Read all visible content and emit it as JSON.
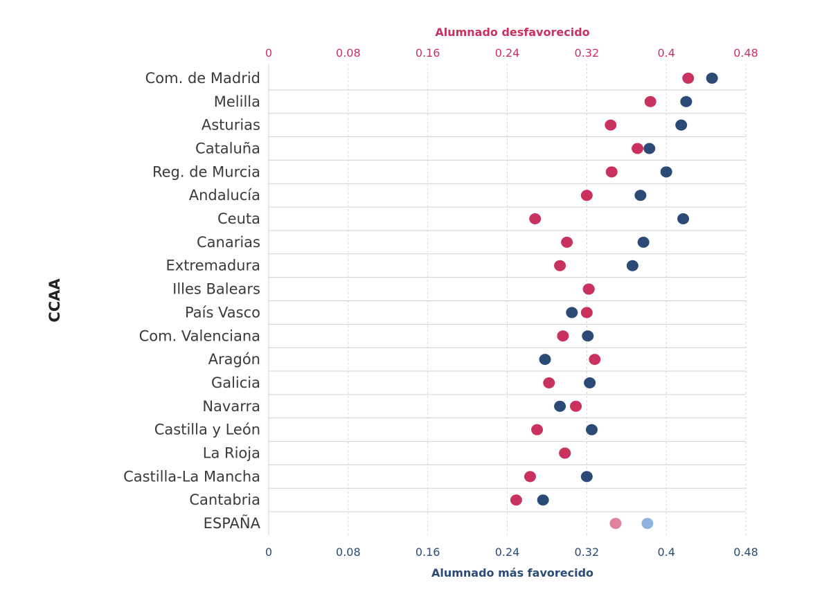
{
  "chart_data": {
    "type": "scatter",
    "ylabel": "CCAA",
    "top_axis_title": "Alumnado desfavorecido",
    "bottom_axis_title": "Alumnado más favorecido",
    "xlim": [
      0,
      0.48
    ],
    "ticks": [
      0,
      0.08,
      0.16,
      0.24,
      0.32,
      0.4,
      0.48
    ],
    "tick_labels": [
      "0",
      "0.08",
      "0.16",
      "0.24",
      "0.32",
      "0.4",
      "0.48"
    ],
    "categories": [
      "Com. de Madrid",
      "Melilla",
      "Asturias",
      "Cataluña",
      "Reg. de Murcia",
      "Andalucía",
      "Ceuta",
      "Canarias",
      "Extremadura",
      "Illes Balears",
      "País Vasco",
      "Com. Valenciana",
      "Aragón",
      "Galicia",
      "Navarra",
      "Castilla y León",
      "La Rioja",
      "Castilla-La Mancha",
      "Cantabria",
      "ESPAÑA"
    ],
    "series": [
      {
        "name": "Alumnado desfavorecido",
        "color": "#c9325e",
        "highlight_color": "#e0819e",
        "values": [
          0.422,
          0.384,
          0.344,
          0.371,
          0.345,
          0.32,
          0.268,
          0.3,
          0.293,
          0.322,
          0.32,
          0.296,
          0.328,
          0.282,
          0.309,
          0.27,
          0.298,
          0.263,
          0.249,
          0.349
        ]
      },
      {
        "name": "Alumnado más favorecido",
        "color": "#2b4a75",
        "highlight_color": "#8ab3e0",
        "values": [
          0.446,
          0.42,
          0.415,
          0.383,
          0.4,
          0.374,
          0.417,
          0.377,
          0.366,
          0.322,
          0.305,
          0.321,
          0.278,
          0.323,
          0.293,
          0.325,
          0.298,
          0.32,
          0.276,
          0.381
        ]
      }
    ]
  },
  "colors": {
    "top_axis": "#c9325e",
    "bottom_axis": "#2b4a75",
    "grid": "#d6d6d6",
    "row_line": "#d0d0d0"
  }
}
